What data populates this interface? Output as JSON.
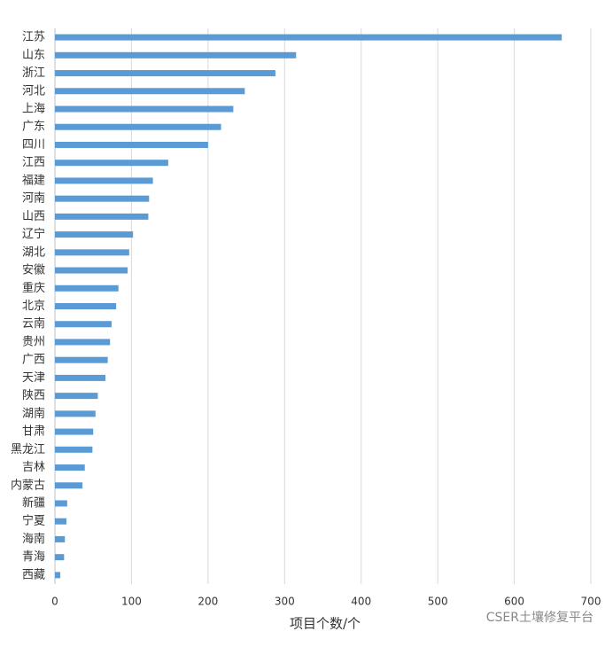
{
  "chart_data": {
    "type": "barh",
    "categories": [
      "江苏",
      "山东",
      "浙江",
      "河北",
      "上海",
      "广东",
      "四川",
      "江西",
      "福建",
      "河南",
      "山西",
      "辽宁",
      "湖北",
      "安徽",
      "重庆",
      "北京",
      "云南",
      "贵州",
      "广西",
      "天津",
      "陕西",
      "湖南",
      "甘肃",
      "黑龙江",
      "吉林",
      "内蒙古",
      "新疆",
      "宁夏",
      "海南",
      "青海",
      "西藏"
    ],
    "values": [
      662,
      315,
      288,
      248,
      233,
      217,
      200,
      148,
      128,
      123,
      122,
      102,
      97,
      95,
      83,
      80,
      74,
      72,
      69,
      66,
      56,
      53,
      50,
      49,
      39,
      36,
      16,
      15,
      13,
      12,
      7
    ],
    "color": "#5b9bd5",
    "xlim": [
      0,
      700
    ],
    "xticks": [
      0,
      100,
      200,
      300,
      400,
      500,
      600,
      700
    ],
    "xlabel": "项目个数/个",
    "grid": true,
    "watermark": "CSER土壤修复平台"
  }
}
